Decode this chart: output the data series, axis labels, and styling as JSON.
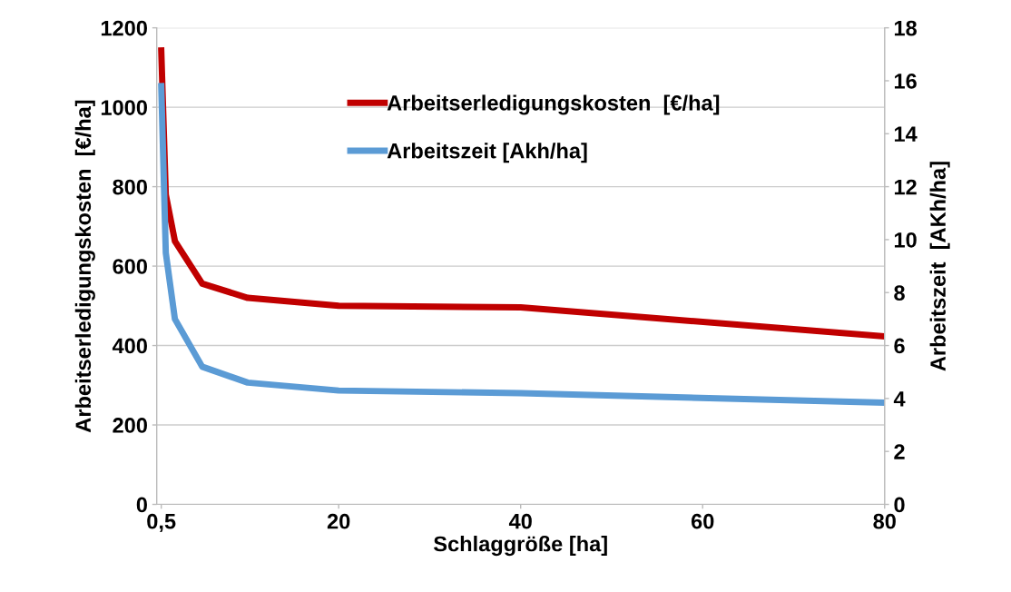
{
  "chart_data": {
    "type": "line",
    "xlabel": "Schlaggröße [ha]",
    "ylabel": "Arbeitserledigungskosten  [€/ha]",
    "y2label": "Arbeitszeit  [AKh/ha]",
    "x": [
      0.5,
      1,
      2,
      5,
      10,
      20,
      40,
      80
    ],
    "series": [
      {
        "name": "Arbeitserledigungskosten  [€/ha]",
        "color": "#c00000",
        "values": [
          1143,
          780,
          663,
          556,
          520,
          500,
          496,
          423
        ]
      },
      {
        "name": "Arbeitszeit [Akh/ha]",
        "color": "#5b9bd5",
        "axis": "y2",
        "values": [
          15.8,
          9.5,
          7.0,
          5.2,
          4.6,
          4.3,
          4.2,
          3.84
        ]
      }
    ],
    "xlim": [
      0,
      80
    ],
    "xticks": [
      {
        "value": 0.5,
        "label": "0,5"
      },
      20,
      40,
      60,
      80
    ],
    "ylim": [
      0,
      1200
    ],
    "yticks": [
      0,
      200,
      400,
      600,
      800,
      1000,
      1200
    ],
    "y2lim": [
      0,
      18
    ],
    "y2ticks": [
      0,
      2,
      4,
      6,
      8,
      10,
      12,
      14,
      16,
      18
    ],
    "grid": "y",
    "legend": "top",
    "marker": "none",
    "line_style": "solid"
  }
}
